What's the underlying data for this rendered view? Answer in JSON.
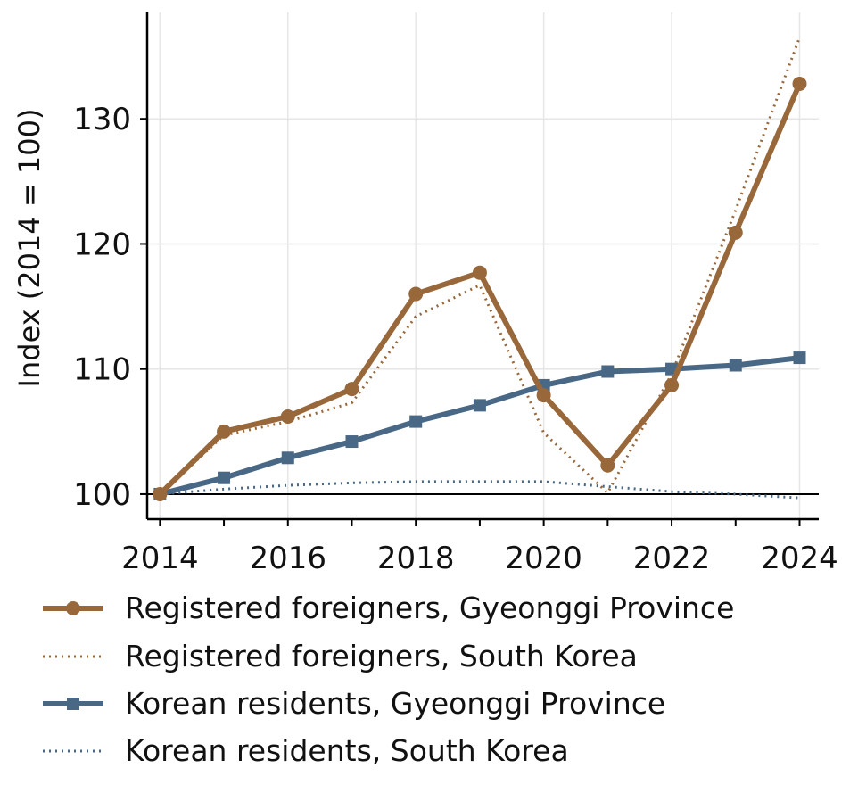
{
  "chart_data": {
    "type": "line",
    "xlabel": "",
    "ylabel": "Index (2014 = 100)",
    "x": [
      2014,
      2015,
      2016,
      2017,
      2018,
      2019,
      2020,
      2021,
      2022,
      2023,
      2024
    ],
    "xlim": [
      2013.8,
      2024.3
    ],
    "ylim": [
      98,
      138.5
    ],
    "x_ticks": [
      "2014",
      "2016",
      "2018",
      "2020",
      "2022",
      "2024"
    ],
    "y_ticks": [
      "100",
      "110",
      "120",
      "130"
    ],
    "grid": true,
    "reference_line": 100,
    "legend_position": "bottom",
    "series": [
      {
        "name": "Registered foreigners, Gyeonggi Province",
        "values": [
          100,
          105.0,
          106.2,
          108.4,
          116.0,
          117.7,
          107.9,
          102.3,
          108.7,
          120.9,
          132.8
        ],
        "color": "#99683a",
        "style": "solid",
        "marker": "circle"
      },
      {
        "name": "Registered foreigners, South Korea",
        "values": [
          100,
          104.7,
          105.8,
          107.3,
          114.2,
          116.7,
          104.9,
          100.1,
          109.6,
          122.7,
          136.5
        ],
        "color": "#99683a",
        "style": "dotted",
        "marker": "none"
      },
      {
        "name": "Korean residents, Gyeonggi Province",
        "values": [
          100,
          101.3,
          102.9,
          104.2,
          105.8,
          107.1,
          108.7,
          109.8,
          110.0,
          110.3,
          110.9
        ],
        "color": "#486886",
        "style": "solid",
        "marker": "square"
      },
      {
        "name": "Korean residents, South Korea",
        "values": [
          100,
          100.4,
          100.7,
          100.9,
          101.0,
          101.0,
          101.0,
          100.6,
          100.2,
          100.0,
          99.7
        ],
        "color": "#486886",
        "style": "dotted",
        "marker": "none"
      }
    ]
  }
}
